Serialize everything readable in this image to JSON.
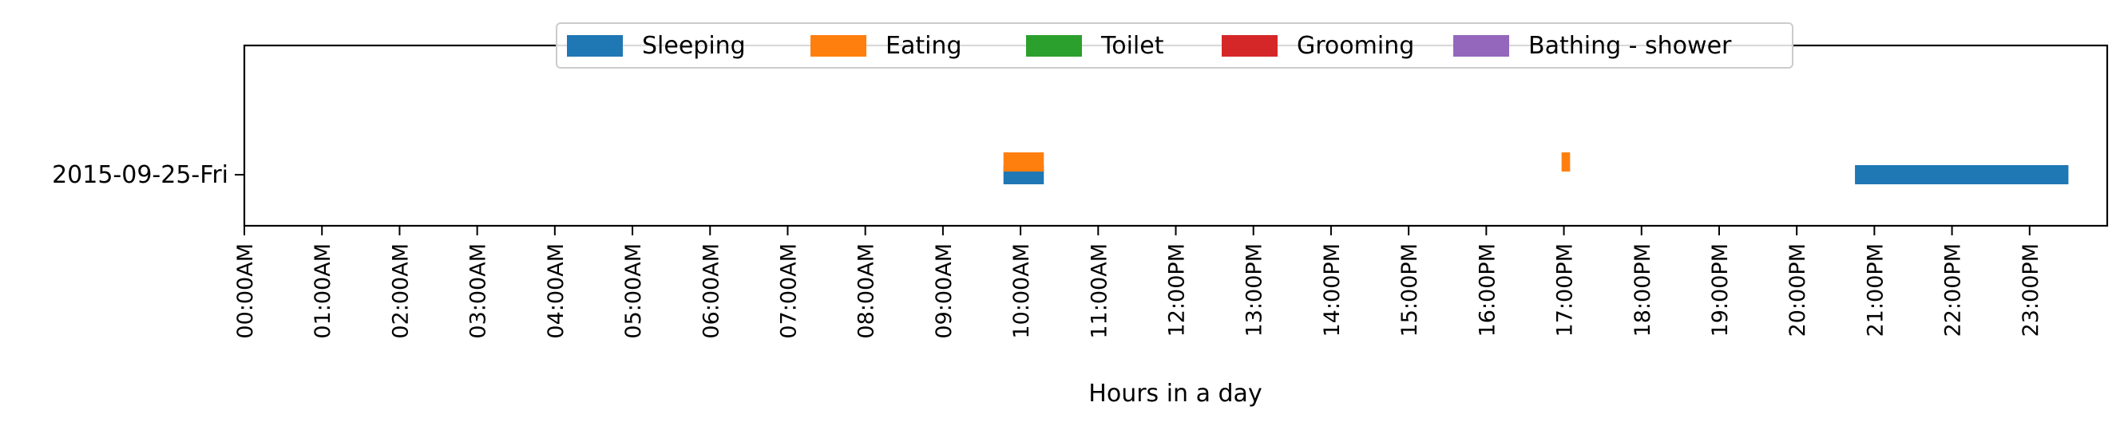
{
  "chart_data": {
    "type": "bar",
    "orientation": "horizontal-timeline",
    "title": "",
    "xlabel": "Hours in a day",
    "ylabel": "",
    "xlim": [
      0,
      24
    ],
    "x_ticks": [
      0,
      1,
      2,
      3,
      4,
      5,
      6,
      7,
      8,
      9,
      10,
      11,
      12,
      13,
      14,
      15,
      16,
      17,
      18,
      19,
      20,
      21,
      22,
      23
    ],
    "x_tick_labels": [
      "00:00AM",
      "01:00AM",
      "02:00AM",
      "03:00AM",
      "04:00AM",
      "05:00AM",
      "06:00AM",
      "07:00AM",
      "08:00AM",
      "09:00AM",
      "10:00AM",
      "11:00AM",
      "12:00PM",
      "13:00PM",
      "14:00PM",
      "15:00PM",
      "16:00PM",
      "17:00PM",
      "18:00PM",
      "19:00PM",
      "20:00PM",
      "21:00PM",
      "22:00PM",
      "23:00PM"
    ],
    "categories": [
      "2015-09-25-Fri"
    ],
    "grid": false,
    "legend_position": "top-center",
    "series": [
      {
        "name": "Sleeping",
        "color": "#1f77b4",
        "intervals": [
          {
            "start": 9.78,
            "end": 10.3
          },
          {
            "start": 20.75,
            "end": 23.5
          }
        ]
      },
      {
        "name": "Eating",
        "color": "#ff7f0e",
        "intervals": [
          {
            "start": 9.78,
            "end": 10.3
          },
          {
            "start": 16.97,
            "end": 17.08
          }
        ]
      },
      {
        "name": "Toilet",
        "color": "#2ca02c",
        "intervals": []
      },
      {
        "name": "Grooming",
        "color": "#d62728",
        "intervals": []
      },
      {
        "name": "Bathing - shower",
        "color": "#9467bd",
        "intervals": []
      }
    ]
  }
}
